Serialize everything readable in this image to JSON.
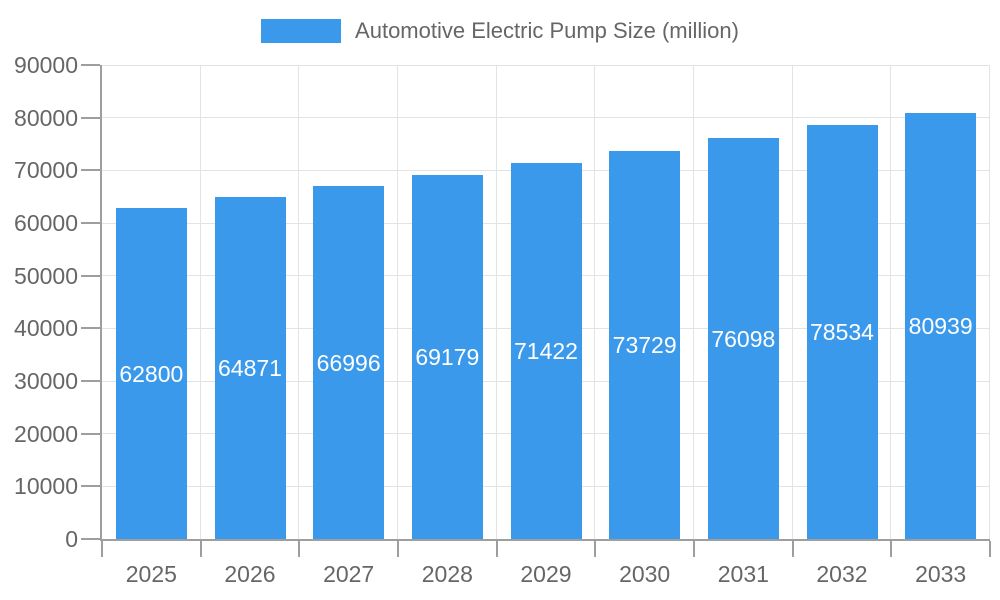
{
  "chart_data": {
    "type": "bar",
    "title": "Automotive Electric Pump Size (million)",
    "categories": [
      "2025",
      "2026",
      "2027",
      "2028",
      "2029",
      "2030",
      "2031",
      "2032",
      "2033"
    ],
    "values": [
      62800,
      64871,
      66996,
      69179,
      71422,
      73729,
      76098,
      78534,
      80939
    ],
    "xlabel": "",
    "ylabel": "",
    "ylim": [
      0,
      90000
    ],
    "ytick_step": 10000,
    "legend_position": "top",
    "grid": "horizontal-and-vertical",
    "bar_labels_inside": true,
    "colors": {
      "bar": "#3B99EC",
      "bar_label": "#FFFFFF",
      "axis_line": "#9E9E9E",
      "gridline": "#E3E3E3",
      "tick_text": "#666666",
      "legend_text": "#666666",
      "background": "#FFFFFF"
    }
  }
}
